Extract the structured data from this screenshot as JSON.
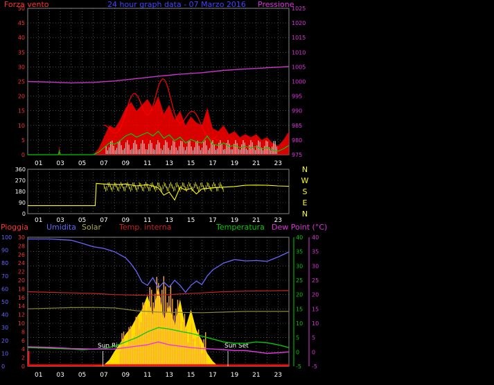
{
  "header": {
    "title": "24 hour graph data - 07 Marzo 2016",
    "left_label": "Forza vento",
    "right_label": "Pressione"
  },
  "colors": {
    "wind": "#ff0000",
    "gust_area": "#ff0000",
    "avg": "#00cc00",
    "calm": "#ffffff",
    "pressure": "#cc33cc",
    "direction": "#ffff00",
    "humidity": "#6666ff",
    "solar": "#ffcc00",
    "solar_line": "#888833",
    "temp_in": "#cc2222",
    "temperature": "#00cc00",
    "dewpoint": "#ee33ee",
    "rain": "#ff0000",
    "axis_wind": "#ff3333",
    "axis_press": "#dd33dd",
    "axis_temp": "#00cc00",
    "axis_dew": "#dd33dd",
    "axis_hum": "#6666ff",
    "axis_rain": "#ff3333"
  },
  "chart_data": [
    {
      "type": "area",
      "panel": "wind-pressure",
      "x_ticks": [
        "01",
        "03",
        "05",
        "07",
        "09",
        "11",
        "13",
        "15",
        "17",
        "19",
        "21",
        "23"
      ],
      "y_left": {
        "label": "Forza vento",
        "ticks": [
          0,
          5,
          10,
          15,
          20,
          25,
          30,
          35,
          40,
          45,
          50
        ]
      },
      "y_right": {
        "label": "Pressione",
        "ticks": [
          975,
          980,
          985,
          990,
          995,
          1000,
          1005,
          1010,
          1015,
          1020,
          1025
        ]
      },
      "series": [
        {
          "name": "Forza vento",
          "x": [
            0,
            2.8,
            2.9,
            3,
            4,
            5,
            6,
            6.5,
            7,
            7.5,
            8,
            8.5,
            9,
            9.5,
            10,
            10.5,
            11,
            11.5,
            12,
            12.5,
            13,
            13.5,
            14,
            14.5,
            15,
            15.5,
            16,
            16.5,
            17,
            17.5,
            18,
            18.5,
            19,
            19.5,
            20,
            20.5,
            21,
            21.5,
            22,
            22.5,
            23,
            23.5,
            24
          ],
          "values": [
            0,
            0,
            3,
            0,
            0,
            0,
            0,
            2,
            6,
            10,
            9,
            12,
            16,
            18,
            15,
            17,
            19,
            16,
            20,
            14,
            17,
            12,
            15,
            10,
            13,
            11,
            10,
            16,
            9,
            8,
            10,
            7,
            8,
            6,
            7,
            6,
            7,
            5,
            6,
            4,
            3,
            5,
            8
          ]
        },
        {
          "name": "Pressione",
          "x": [
            0,
            2,
            4,
            6,
            8,
            10,
            12,
            14,
            16,
            18,
            20,
            22,
            24
          ],
          "values": [
            1000,
            999.8,
            999.5,
            999.7,
            1000.2,
            1001,
            1001.8,
            1002.5,
            1003,
            1003.8,
            1004.3,
            1004.7,
            1005.1
          ]
        }
      ]
    },
    {
      "type": "line",
      "panel": "direction",
      "x_ticks": [
        "01",
        "03",
        "05",
        "07",
        "09",
        "11",
        "13",
        "15",
        "17",
        "19",
        "21",
        "23"
      ],
      "y_left": {
        "ticks": [
          0,
          90,
          180,
          270,
          360
        ]
      },
      "y_right": {
        "ticks": [
          "N",
          "W",
          "S",
          "E",
          "N"
        ]
      },
      "series": [
        {
          "name": "Direzione",
          "x": [
            0,
            6.2,
            6.3,
            7,
            8,
            9,
            10,
            11,
            12,
            12.5,
            13,
            13.5,
            14,
            14.5,
            15,
            15.5,
            16,
            17,
            18,
            19,
            20,
            21,
            22,
            23,
            24
          ],
          "values": [
            65,
            65,
            245,
            240,
            235,
            240,
            225,
            235,
            210,
            150,
            175,
            110,
            215,
            190,
            205,
            160,
            200,
            210,
            215,
            220,
            230,
            232,
            230,
            225,
            222
          ]
        }
      ]
    },
    {
      "type": "area",
      "panel": "temperature-humidity",
      "x_ticks": [
        "01",
        "03",
        "05",
        "07",
        "09",
        "11",
        "13",
        "15",
        "17",
        "19",
        "21",
        "23"
      ],
      "axes": {
        "pioggia": {
          "label": "Pioggia",
          "ticks": [
            0,
            10,
            20,
            30,
            40,
            50,
            60,
            70,
            80,
            90,
            100
          ]
        },
        "umidita": {
          "label": "Umidita",
          "ticks": [
            0,
            2,
            4,
            6,
            8,
            10,
            12,
            14,
            16,
            18,
            20,
            22,
            24,
            26,
            28,
            30
          ]
        },
        "temperatura": {
          "label": "Temperatura",
          "ticks": [
            -5,
            0,
            5,
            10,
            15,
            20,
            25,
            30,
            35,
            40
          ]
        },
        "dewpoint": {
          "label": "Dew Point (°C)",
          "ticks": [
            -5,
            0,
            5,
            10,
            15,
            20,
            25,
            30,
            35,
            40
          ]
        }
      },
      "legend": [
        "Pioggia",
        "Umidita",
        "Solar",
        "Temp. interna",
        "Temperatura",
        "Dew Point (°C)"
      ],
      "annotations": [
        "Sun Rise",
        "Sun Set"
      ],
      "series": [
        {
          "name": "Umidita",
          "axis": "umidita",
          "x": [
            0,
            2,
            4,
            5,
            6,
            7,
            8,
            9,
            9.5,
            10,
            10.5,
            11,
            11.5,
            12,
            12.5,
            13,
            13.5,
            14,
            14.5,
            15,
            15.5,
            16,
            16.5,
            17,
            18,
            19,
            20,
            21,
            22,
            23,
            24
          ],
          "values": [
            29.6,
            29.6,
            29.3,
            28.6,
            27.8,
            27.4,
            26.6,
            25.2,
            23.8,
            22,
            19.6,
            18.8,
            20.6,
            18.2,
            19.6,
            18.4,
            20,
            18.8,
            17.2,
            18.8,
            19.8,
            19,
            21,
            22.4,
            24,
            24.8,
            24.5,
            24.6,
            24.4,
            25.4,
            26.6
          ]
        },
        {
          "name": "Solar",
          "axis": "pioggia",
          "x": [
            0,
            6,
            7,
            7.5,
            8,
            8.5,
            9,
            9.5,
            10,
            10.5,
            11,
            11.5,
            12,
            12.5,
            13,
            13.5,
            14,
            14.5,
            15,
            15.5,
            16,
            16.5,
            17,
            17.5,
            24
          ],
          "values": [
            0,
            0,
            1,
            5,
            12,
            18,
            25,
            30,
            38,
            44,
            55,
            40,
            62,
            36,
            48,
            32,
            52,
            30,
            44,
            28,
            20,
            10,
            4,
            0,
            0
          ]
        },
        {
          "name": "Solar line",
          "axis": "pioggia",
          "x": [
            0,
            2,
            4,
            6,
            8,
            10,
            12,
            14,
            16,
            18,
            20,
            22,
            24
          ],
          "values": [
            44.5,
            45,
            45.5,
            45.6,
            45.2,
            43,
            42,
            41.8,
            41.5,
            42,
            42.5,
            42.5,
            42.5
          ]
        },
        {
          "name": "Temp. interna",
          "axis": "temperatura",
          "x": [
            0,
            2,
            4,
            6,
            8,
            10,
            12,
            14,
            16,
            18,
            20,
            22,
            24
          ],
          "values": [
            21,
            20.8,
            20.6,
            20.4,
            20,
            19.8,
            19.8,
            20.2,
            20.6,
            21,
            21.2,
            21.3,
            21.4
          ]
        },
        {
          "name": "Temperatura",
          "axis": "temperatura",
          "x": [
            0,
            2,
            4,
            5,
            6,
            7,
            8,
            9,
            10,
            11,
            12,
            13,
            14,
            15,
            16,
            17,
            18,
            19,
            20,
            21,
            22,
            23,
            24
          ],
          "values": [
            1.5,
            1.3,
            1,
            0.8,
            1,
            1.2,
            2,
            3.5,
            5,
            7,
            8.5,
            8,
            7.2,
            6.5,
            5.5,
            4.5,
            3.5,
            3,
            3,
            3.5,
            3.2,
            2.5,
            1.5
          ]
        },
        {
          "name": "Dew Point (°C)",
          "axis": "temperatura",
          "x": [
            0,
            2,
            4,
            6,
            8,
            9,
            10,
            11,
            12,
            13,
            14,
            15,
            16,
            17,
            18,
            19,
            20,
            21,
            22,
            23,
            24
          ],
          "values": [
            1.8,
            1.6,
            1.2,
            1,
            1,
            1.5,
            2,
            2.5,
            3.5,
            2.5,
            2,
            1.5,
            1.2,
            1,
            0.8,
            0.5,
            0.5,
            0,
            -0.5,
            -0.3,
            0
          ]
        },
        {
          "name": "Pioggia",
          "axis": "pioggia",
          "x": [
            0,
            24
          ],
          "values": [
            0,
            0
          ]
        }
      ]
    }
  ]
}
